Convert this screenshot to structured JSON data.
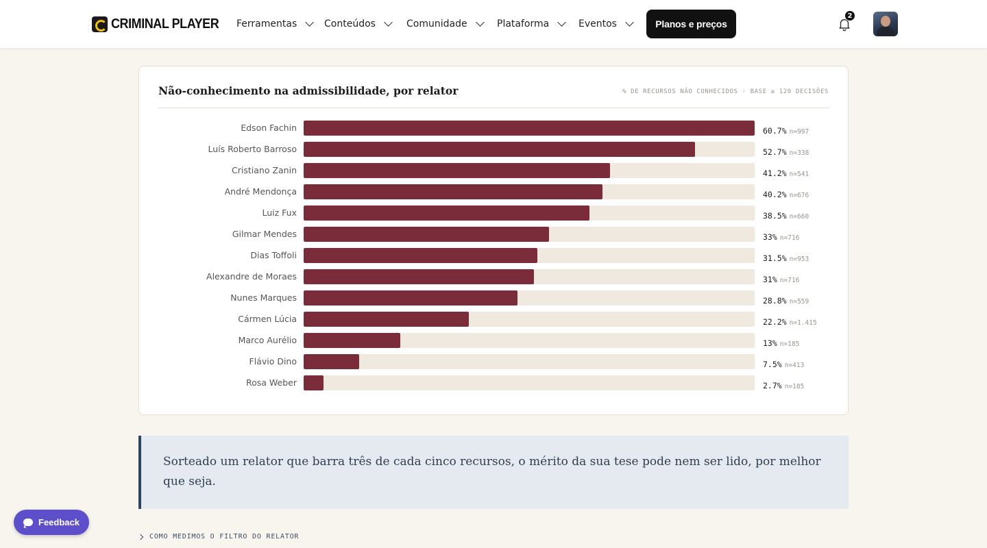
{
  "brand": {
    "name": "CRIMINAL PLAYER"
  },
  "nav": {
    "items": [
      {
        "label": "Ferramentas"
      },
      {
        "label": "Conteúdos"
      },
      {
        "label": "Comunidade"
      },
      {
        "label": "Plataforma"
      },
      {
        "label": "Eventos"
      }
    ],
    "cta_label": "Planos e preços",
    "notifications_count": "2"
  },
  "card": {
    "title": "Não-conhecimento na admissibilidade, por relator",
    "meta": "% DE RECURSOS NÃO CONHECIDOS · BASE ≥ 120 DECISÕES"
  },
  "chart_data": {
    "type": "bar",
    "orientation": "horizontal",
    "title": "Não-conhecimento na admissibilidade, por relator",
    "subtitle": "% DE RECURSOS NÃO CONHECIDOS · BASE ≥ 120 DECISÕES",
    "xlim": [
      0,
      60.7
    ],
    "categories": [
      "Edson Fachin",
      "Luís Roberto Barroso",
      "Cristiano Zanin",
      "André Mendonça",
      "Luiz Fux",
      "Gilmar Mendes",
      "Dias Toffoli",
      "Alexandre de Moraes",
      "Nunes Marques",
      "Cármen Lúcia",
      "Marco Aurélio",
      "Flávio Dino",
      "Rosa Weber"
    ],
    "values": [
      60.7,
      52.7,
      41.2,
      40.2,
      38.5,
      33,
      31.5,
      31,
      28.8,
      22.2,
      13,
      7.5,
      2.7
    ],
    "value_labels": [
      "60.7%",
      "52.7%",
      "41.2%",
      "40.2%",
      "38.5%",
      "33%",
      "31.5%",
      "31%",
      "28.8%",
      "22.2%",
      "13%",
      "7.5%",
      "2.7%"
    ],
    "n_labels": [
      "n=997",
      "n=338",
      "n=541",
      "n=676",
      "n=660",
      "n=716",
      "n=953",
      "n=716",
      "n=559",
      "n=1.415",
      "n=185",
      "n=413",
      "n=185"
    ],
    "bar_color": "#7a2c3a",
    "track_color": "#efe9df"
  },
  "quote": {
    "text": "Sorteado um relator que barra três de cada cinco recursos, o mérito da sua tese pode nem ser lido, por melhor que seja."
  },
  "method": {
    "label": "COMO MEDIMOS O FILTRO DO RELATOR"
  },
  "feedback": {
    "label": "Feedback"
  }
}
